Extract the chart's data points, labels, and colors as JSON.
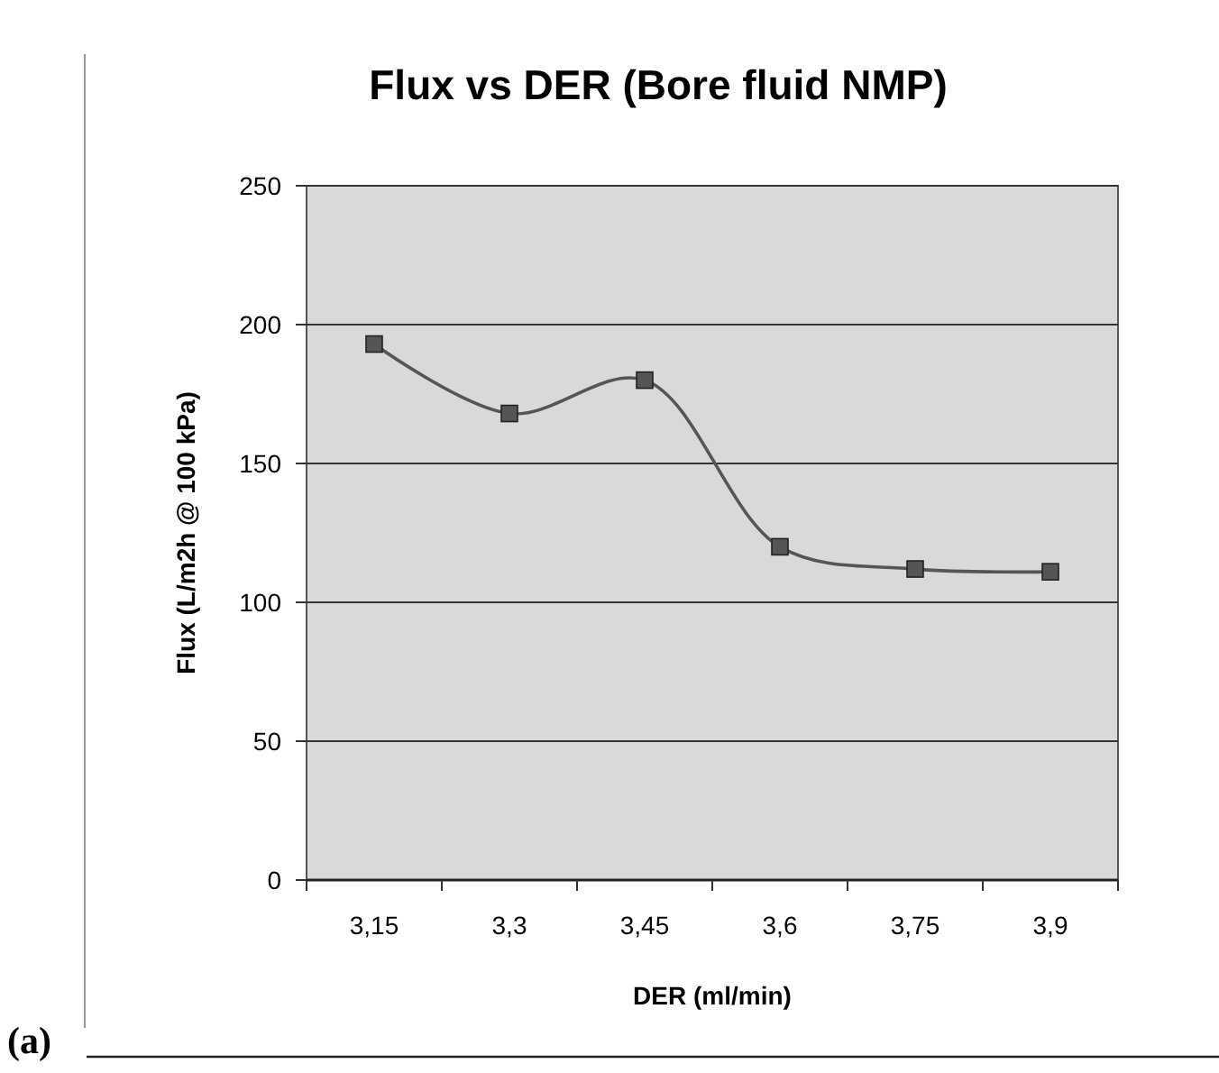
{
  "chart_data": {
    "type": "line",
    "title": "Flux vs DER (Bore fluid NMP)",
    "xlabel": "DER (ml/min)",
    "ylabel": "Flux (L/m2h @ 100 kPa)",
    "categories": [
      "3,15",
      "3,3",
      "3,45",
      "3,6",
      "3,75",
      "3,9"
    ],
    "series": [
      {
        "color": "#555555",
        "values": [
          193,
          168,
          180,
          120,
          112,
          111
        ]
      }
    ],
    "ylim": [
      0,
      250
    ],
    "yticks": [
      0,
      50,
      100,
      150,
      200,
      250
    ],
    "grid": "y",
    "marker": "square",
    "annotations": [
      "(a)"
    ]
  }
}
